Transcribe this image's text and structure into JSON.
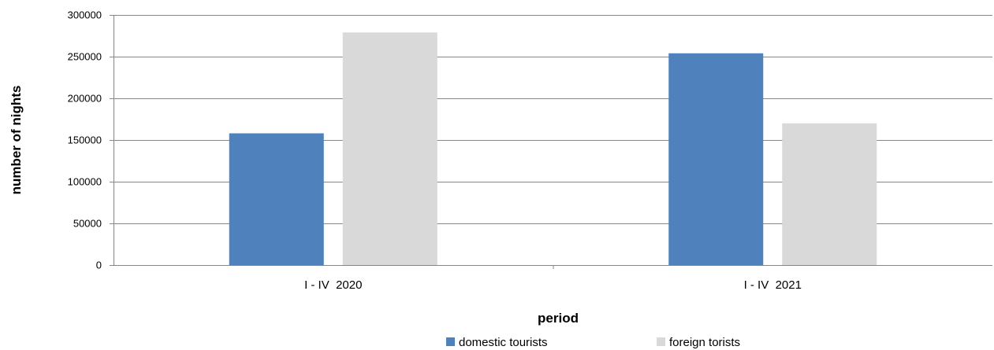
{
  "chart_data": {
    "type": "bar",
    "categories": [
      "I - IV  2020",
      "I - IV  2021"
    ],
    "series": [
      {
        "name": "domestic tourists",
        "values": [
          158000,
          254000
        ],
        "color": "#4f81bd"
      },
      {
        "name": "foreign torists",
        "values": [
          279000,
          170000
        ],
        "color": "#d9d9d9"
      }
    ],
    "title": "",
    "xlabel": "period",
    "ylabel": "number of nights",
    "ylim": [
      0,
      300000
    ],
    "yticks": [
      0,
      50000,
      100000,
      150000,
      200000,
      250000,
      300000
    ],
    "grid": true,
    "legend_position": "bottom"
  }
}
